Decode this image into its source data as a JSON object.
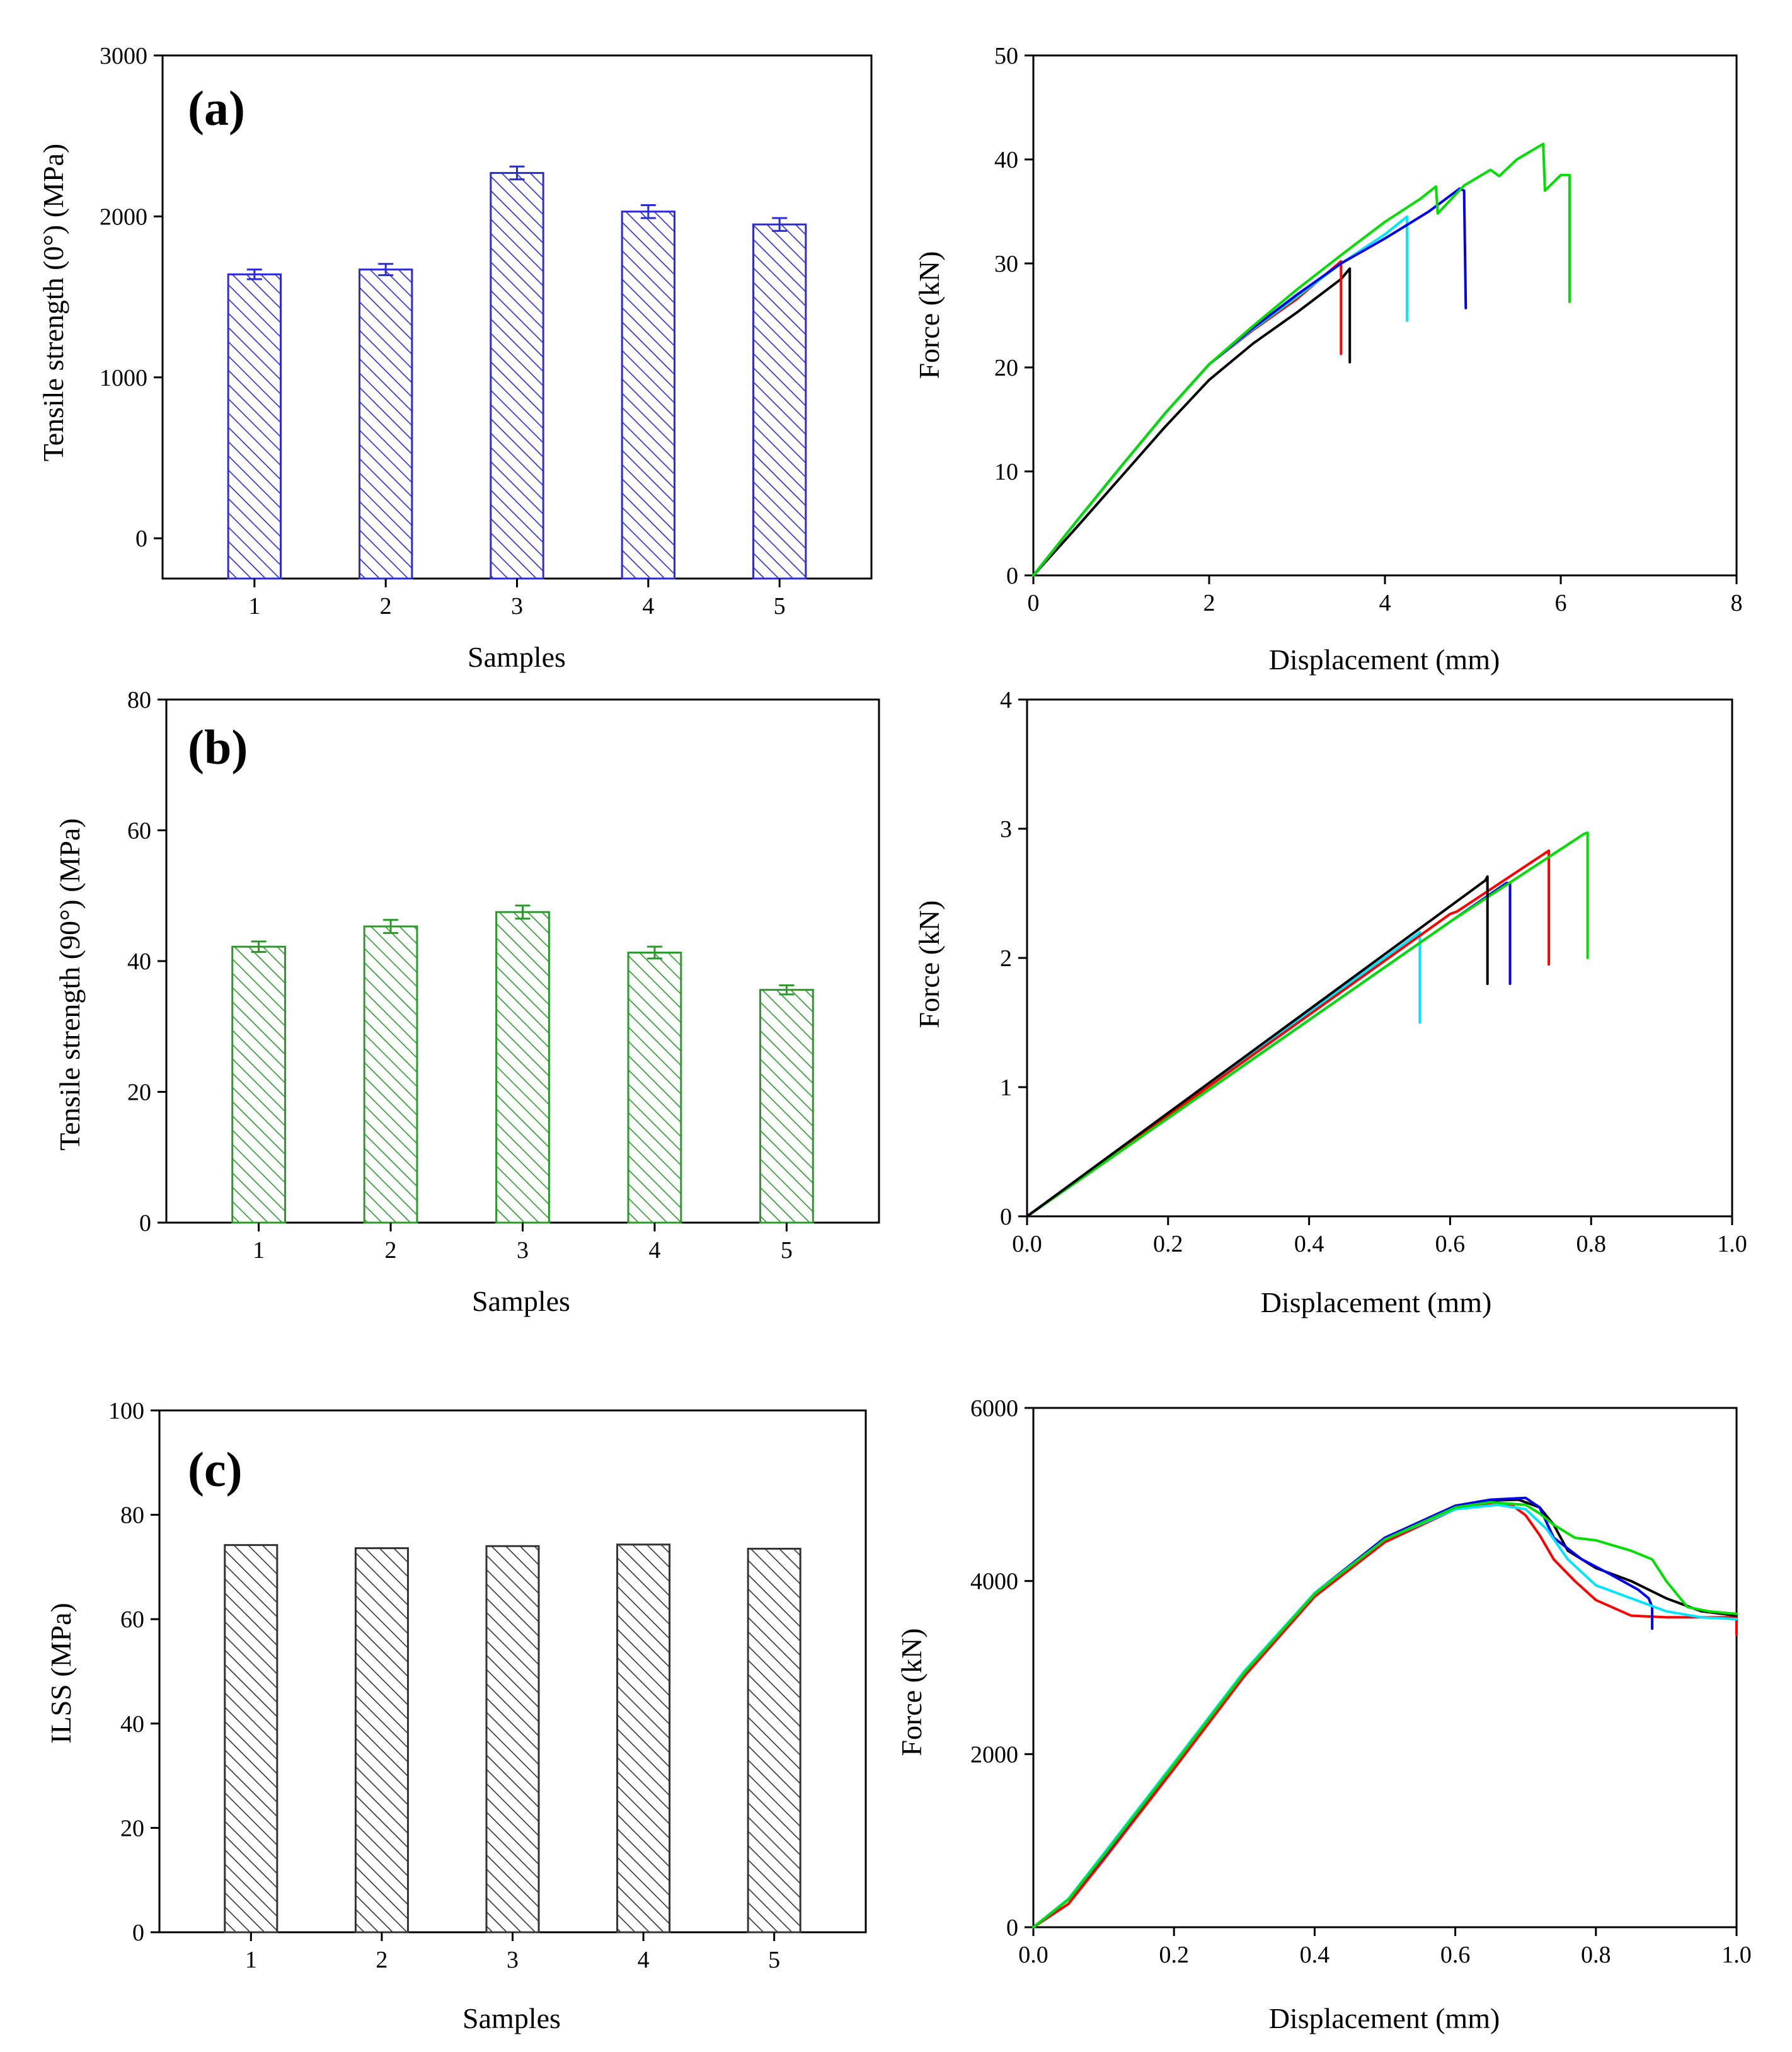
{
  "figure": {
    "colors": {
      "black": "#000000",
      "red": "#ff0000",
      "green": "#00dd00",
      "blue": "#0000ee",
      "cyan": "#00e5ff",
      "bar_a": "#2b2bdb",
      "bar_b": "#2a9a2a",
      "bar_c": "#333333"
    }
  },
  "chart_data": [
    {
      "id": "a-bar",
      "type": "bar",
      "panel_label": "(a)",
      "title": "",
      "xlabel": "Samples",
      "ylabel": "Tensile strength (0°) (MPa)",
      "categories": [
        "1",
        "2",
        "3",
        "4",
        "5"
      ],
      "values": [
        1640,
        1670,
        2270,
        2030,
        1950
      ],
      "errors": [
        30,
        35,
        40,
        40,
        40
      ],
      "ylim": [
        -250,
        3000
      ],
      "yticks": [
        0,
        1000,
        2000,
        3000
      ],
      "ytick_labels": [
        "0",
        "1000",
        "2000",
        "3000"
      ],
      "color": "#2b2bdb",
      "hatch": "diagonal"
    },
    {
      "id": "a-line",
      "type": "line",
      "xlabel": "Displacement (mm)",
      "ylabel": "Force (kN)",
      "xlim": [
        0,
        8
      ],
      "ylim": [
        0,
        50
      ],
      "xticks": [
        0,
        2,
        4,
        6,
        8
      ],
      "xtick_labels": [
        "0",
        "2",
        "4",
        "6",
        "8"
      ],
      "yticks": [
        0,
        10,
        20,
        30,
        40,
        50
      ],
      "ytick_labels": [
        "0",
        "10",
        "20",
        "30",
        "40",
        "50"
      ],
      "series": [
        {
          "name": "black",
          "color": "#000000",
          "x": [
            0,
            0.5,
            1,
            1.5,
            2,
            2.5,
            3,
            3.5,
            3.6,
            3.6
          ],
          "y": [
            0,
            4.7,
            9.5,
            14.3,
            18.8,
            22.3,
            25.3,
            28.5,
            29.5,
            20.5
          ]
        },
        {
          "name": "red",
          "color": "#ff0000",
          "x": [
            0,
            0.5,
            1,
            1.5,
            2,
            2.5,
            3,
            3.5,
            3.5
          ],
          "y": [
            0,
            5.3,
            10.5,
            15.6,
            20.3,
            23.6,
            26.6,
            30.2,
            21.3
          ]
        },
        {
          "name": "cyan",
          "color": "#00e5ff",
          "x": [
            0,
            0.5,
            1,
            1.5,
            2,
            2.5,
            3,
            3.5,
            4,
            4.25,
            4.25
          ],
          "y": [
            0,
            5.3,
            10.5,
            15.6,
            20.3,
            23.7,
            26.8,
            30,
            32.8,
            34.5,
            24.5
          ]
        },
        {
          "name": "blue",
          "color": "#0000ee",
          "x": [
            0,
            0.5,
            1,
            1.5,
            2,
            2.5,
            3,
            3.5,
            4,
            4.5,
            4.85,
            4.9,
            4.92
          ],
          "y": [
            0,
            5.3,
            10.5,
            15.6,
            20.3,
            23.8,
            27,
            30,
            32.4,
            35,
            37.2,
            37,
            25.7
          ]
        },
        {
          "name": "green",
          "color": "#00dd00",
          "x": [
            0,
            0.5,
            1,
            1.5,
            2,
            2.5,
            3,
            3.5,
            4,
            4.4,
            4.58,
            4.6,
            4.9,
            5.1,
            5.2,
            5.3,
            5.5,
            5.8,
            5.82,
            6.0,
            6.1,
            6.1
          ],
          "y": [
            0,
            5.3,
            10.5,
            15.6,
            20.3,
            24,
            27.5,
            30.8,
            34,
            36.2,
            37.4,
            34.8,
            37.5,
            38.5,
            39,
            38.4,
            40,
            41.5,
            37,
            38.5,
            38.5,
            26.3
          ]
        }
      ]
    },
    {
      "id": "b-bar",
      "type": "bar",
      "panel_label": "(b)",
      "title": "",
      "xlabel": "Samples",
      "ylabel": "Tensile strength (90°) (MPa)",
      "categories": [
        "1",
        "2",
        "3",
        "4",
        "5"
      ],
      "values": [
        42.2,
        45.3,
        47.5,
        41.3,
        35.6
      ],
      "errors": [
        0.8,
        1,
        1,
        0.9,
        0.7
      ],
      "ylim": [
        0,
        80
      ],
      "yticks": [
        0,
        20,
        40,
        60,
        80
      ],
      "ytick_labels": [
        "0",
        "20",
        "40",
        "60",
        "80"
      ],
      "color": "#2a9a2a",
      "hatch": "diagonal"
    },
    {
      "id": "b-line",
      "type": "line",
      "xlabel": "Displacement (mm)",
      "ylabel": "Force (kN)",
      "xlim": [
        0,
        1
      ],
      "ylim": [
        0,
        4
      ],
      "xticks": [
        0,
        0.2,
        0.4,
        0.6,
        0.8,
        1
      ],
      "xtick_labels": [
        "0.0",
        "0.2",
        "0.4",
        "0.6",
        "0.8",
        "1.0"
      ],
      "yticks": [
        0,
        1,
        2,
        3,
        4
      ],
      "ytick_labels": [
        "0",
        "1",
        "2",
        "3",
        "4"
      ],
      "series": [
        {
          "name": "cyan",
          "color": "#00e5ff",
          "x": [
            0,
            0.2,
            0.4,
            0.555,
            0.557,
            0.557
          ],
          "y": [
            0,
            0.79,
            1.58,
            2.19,
            2.2,
            1.5
          ]
        },
        {
          "name": "blue",
          "color": "#0000ee",
          "x": [
            0,
            0.2,
            0.4,
            0.6,
            0.68,
            0.685,
            0.685
          ],
          "y": [
            0,
            0.76,
            1.52,
            2.28,
            2.58,
            2.58,
            1.8
          ]
        },
        {
          "name": "red",
          "color": "#ff0000",
          "x": [
            0,
            0.2,
            0.4,
            0.6,
            0.61,
            0.74,
            0.74
          ],
          "y": [
            0,
            0.78,
            1.56,
            2.34,
            2.36,
            2.83,
            1.95
          ]
        },
        {
          "name": "green",
          "color": "#00dd00",
          "x": [
            0,
            0.2,
            0.4,
            0.6,
            0.79,
            0.795,
            0.795
          ],
          "y": [
            0,
            0.76,
            1.52,
            2.28,
            2.96,
            2.97,
            2.0
          ]
        },
        {
          "name": "black",
          "color": "#000000",
          "x": [
            0,
            0.2,
            0.4,
            0.6,
            0.65,
            0.653,
            0.653
          ],
          "y": [
            0,
            0.8,
            1.6,
            2.4,
            2.6,
            2.63,
            1.8
          ]
        }
      ]
    },
    {
      "id": "c-bar",
      "type": "bar",
      "panel_label": "(c)",
      "title": "",
      "xlabel": "Samples",
      "ylabel": "ILSS (MPa)",
      "categories": [
        "1",
        "2",
        "3",
        "4",
        "5"
      ],
      "values": [
        74.2,
        73.6,
        74,
        74.3,
        73.5
      ],
      "errors": [
        0,
        0,
        0,
        0,
        0
      ],
      "ylim": [
        0,
        100
      ],
      "yticks": [
        0,
        20,
        40,
        60,
        80,
        100
      ],
      "ytick_labels": [
        "0",
        "20",
        "40",
        "60",
        "80",
        "100"
      ],
      "color": "#333333",
      "hatch": "diagonal"
    },
    {
      "id": "c-line",
      "type": "line",
      "xlabel": "Displacement (mm)",
      "ylabel": "Force (kN)",
      "xlim": [
        0,
        1
      ],
      "ylim": [
        0,
        6000
      ],
      "xticks": [
        0,
        0.2,
        0.4,
        0.6,
        0.8,
        1
      ],
      "xtick_labels": [
        "0.0",
        "0.2",
        "0.4",
        "0.6",
        "0.8",
        "1.0"
      ],
      "yticks": [
        0,
        2000,
        4000,
        6000
      ],
      "ytick_labels": [
        "0",
        "2000",
        "4000",
        "6000"
      ],
      "series": [
        {
          "name": "red",
          "color": "#ff0000",
          "x": [
            0,
            0.05,
            0.1,
            0.2,
            0.3,
            0.4,
            0.5,
            0.6,
            0.65,
            0.68,
            0.7,
            0.72,
            0.74,
            0.77,
            0.8,
            0.85,
            0.9,
            0.95,
            1.0,
            1.0
          ],
          "y": [
            0,
            270,
            780,
            1830,
            2900,
            3820,
            4450,
            4830,
            4900,
            4880,
            4760,
            4530,
            4250,
            4000,
            3780,
            3600,
            3580,
            3580,
            3580,
            3380
          ]
        },
        {
          "name": "black",
          "color": "#000000",
          "x": [
            0,
            0.05,
            0.1,
            0.2,
            0.3,
            0.4,
            0.5,
            0.6,
            0.65,
            0.69,
            0.72,
            0.74,
            0.76,
            0.8,
            0.85,
            0.9,
            0.95,
            1.0
          ],
          "y": [
            0,
            320,
            820,
            1880,
            2950,
            3860,
            4500,
            4860,
            4930,
            4940,
            4850,
            4650,
            4350,
            4150,
            4000,
            3800,
            3650,
            3600
          ]
        },
        {
          "name": "blue",
          "color": "#0000ee",
          "x": [
            0,
            0.05,
            0.1,
            0.2,
            0.3,
            0.4,
            0.5,
            0.6,
            0.65,
            0.7,
            0.72,
            0.74,
            0.78,
            0.82,
            0.86,
            0.875,
            0.88,
            0.88
          ],
          "y": [
            0,
            320,
            820,
            1880,
            2950,
            3860,
            4500,
            4870,
            4940,
            4960,
            4850,
            4500,
            4250,
            4080,
            3900,
            3800,
            3700,
            3450
          ]
        },
        {
          "name": "cyan",
          "color": "#00e5ff",
          "x": [
            0,
            0.05,
            0.1,
            0.2,
            0.3,
            0.4,
            0.5,
            0.6,
            0.66,
            0.7,
            0.73,
            0.76,
            0.8,
            0.85,
            0.9,
            0.95,
            1.0
          ],
          "y": [
            0,
            330,
            850,
            1900,
            2960,
            3860,
            4480,
            4830,
            4880,
            4830,
            4600,
            4250,
            3950,
            3800,
            3650,
            3580,
            3560
          ]
        },
        {
          "name": "green",
          "color": "#00dd00",
          "x": [
            0,
            0.05,
            0.1,
            0.2,
            0.3,
            0.4,
            0.5,
            0.6,
            0.65,
            0.7,
            0.72,
            0.74,
            0.77,
            0.8,
            0.85,
            0.88,
            0.9,
            0.93,
            0.96,
            1.0
          ],
          "y": [
            0,
            320,
            830,
            1880,
            2940,
            3850,
            4480,
            4850,
            4910,
            4880,
            4780,
            4650,
            4500,
            4470,
            4350,
            4250,
            4000,
            3700,
            3650,
            3620
          ]
        }
      ]
    }
  ]
}
